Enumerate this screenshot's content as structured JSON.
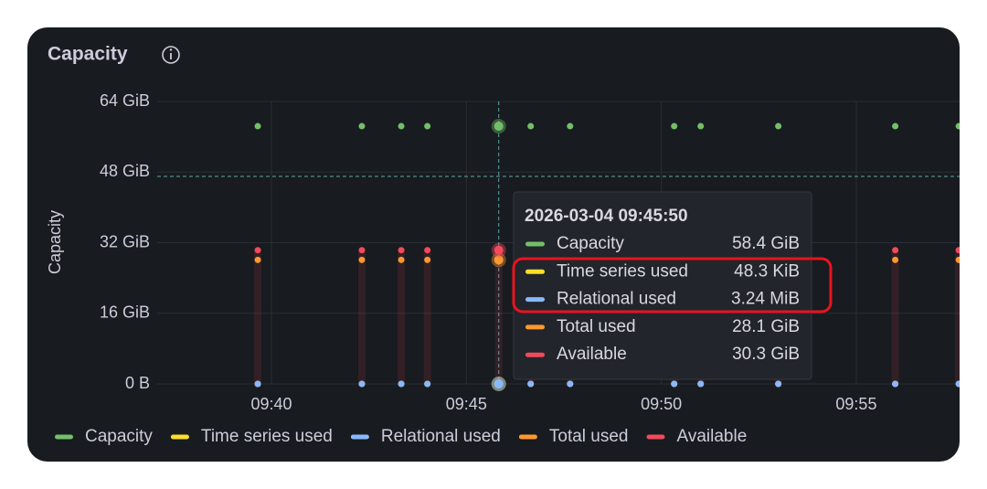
{
  "chart_data": {
    "type": "scatter",
    "title": "Capacity",
    "y_label": "Capacity",
    "x": [
      39.65,
      42.32,
      43.33,
      44.0,
      45.83,
      46.65,
      47.66,
      50.33,
      51.01,
      53.0,
      56.0,
      57.63
    ],
    "xlim": [
      37.07,
      57.65
    ],
    "xticks": [
      {
        "value": 40,
        "label": "09:40"
      },
      {
        "value": 45,
        "label": "09:45"
      },
      {
        "value": 50,
        "label": "09:50"
      },
      {
        "value": 55,
        "label": "09:55"
      }
    ],
    "ylim": [
      0,
      64
    ],
    "yticks": [
      {
        "value": 0,
        "label": "0 B"
      },
      {
        "value": 16,
        "label": "16 GiB"
      },
      {
        "value": 32,
        "label": "32 GiB"
      },
      {
        "value": 48,
        "label": "48 GiB"
      },
      {
        "value": 64,
        "label": "64 GiB"
      }
    ],
    "grid": true,
    "legend": "bottom",
    "series": [
      {
        "name": "Capacity",
        "color": "#73bf69",
        "values": [
          58.4,
          58.4,
          58.4,
          58.4,
          58.4,
          58.4,
          58.4,
          58.4,
          58.4,
          58.4,
          58.4,
          58.4
        ]
      },
      {
        "name": "Time series used",
        "color": "#fade2a",
        "values": [
          4.6e-05,
          4.6e-05,
          4.6e-05,
          4.6e-05,
          4.6e-05,
          4.6e-05,
          4.6e-05,
          4.6e-05,
          4.6e-05,
          4.6e-05,
          4.6e-05,
          4.6e-05
        ]
      },
      {
        "name": "Relational used",
        "color": "#8ab8ff",
        "values": [
          0.00316,
          0.00316,
          0.00316,
          0.00316,
          0.00316,
          0.00316,
          0.00316,
          0.00316,
          0.00316,
          0.00316,
          0.00316,
          0.00316
        ]
      },
      {
        "name": "Total used",
        "color": "#ff9830",
        "values": [
          28.1,
          28.1,
          28.1,
          28.1,
          28.1,
          28.1,
          28.1,
          28.1,
          28.1,
          28.1,
          28.1,
          28.1
        ]
      },
      {
        "name": "Available",
        "color": "#f2495c",
        "values": [
          30.3,
          30.3,
          30.3,
          30.3,
          30.3,
          30.3,
          30.3,
          30.3,
          30.3,
          30.3,
          30.3,
          30.3
        ]
      }
    ],
    "tooltip": {
      "title": "2026-03-04 09:45:50",
      "value_labels": [
        "58.4 GiB",
        "48.3 KiB",
        "3.24 MiB",
        "28.1 GiB",
        "30.3 GiB"
      ]
    }
  }
}
